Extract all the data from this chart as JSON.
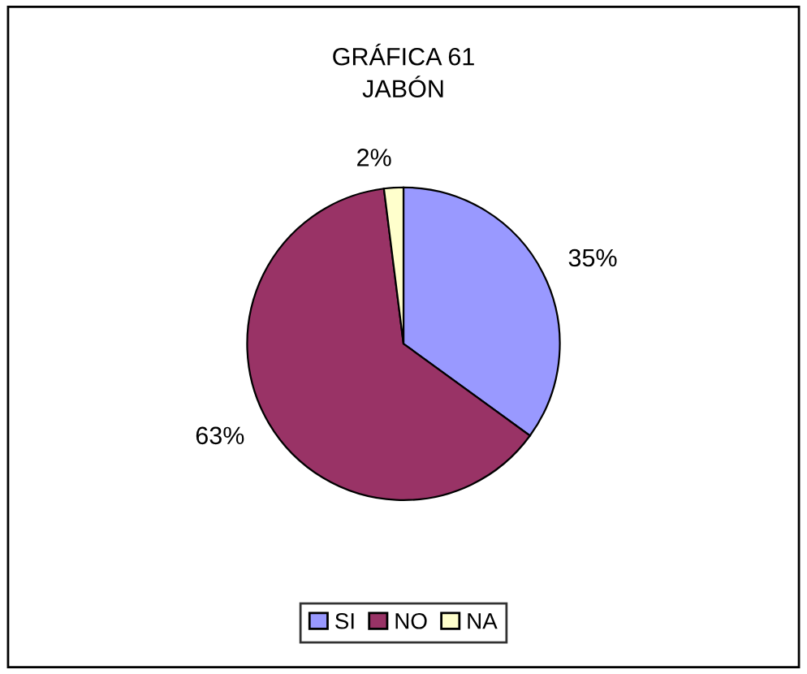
{
  "chart_data": {
    "type": "pie",
    "title": "GRÁFICA 61\nJABÓN",
    "categories": [
      "SI",
      "NO",
      "NA"
    ],
    "values": [
      35,
      63,
      2
    ],
    "value_labels": [
      "35%",
      "63%",
      "2%"
    ],
    "colors": [
      "#9999ff",
      "#993366",
      "#ffffcc"
    ],
    "legend": "bottom"
  }
}
